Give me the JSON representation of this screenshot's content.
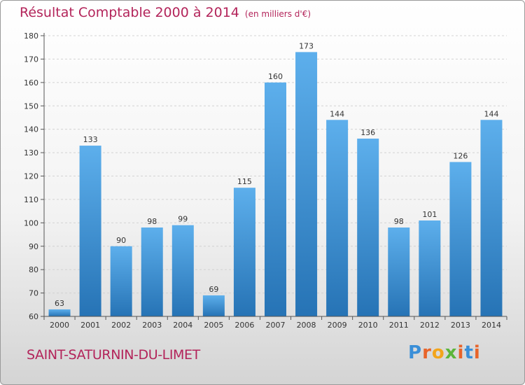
{
  "header": {
    "title": "Résultat Comptable 2000 à 2014",
    "unit": "(en milliers d'€)"
  },
  "footer": {
    "commune": "SAINT-SATURNIN-DU-LIMET",
    "logo": [
      "P",
      "r",
      "o",
      "x",
      "i",
      "t",
      "i"
    ]
  },
  "colors": {
    "title": "#b3245a",
    "bar_light": "#5dafec",
    "bar_dark": "#2673b5",
    "logo": [
      "#3a8fd8",
      "#e8642a",
      "#f2a51c",
      "#5bb53a",
      "#e8642a",
      "#3a8fd8",
      "#e8642a"
    ]
  },
  "chart_data": {
    "type": "bar",
    "title": "Résultat Comptable 2000 à 2014",
    "subtitle": "(en milliers d'€)",
    "xlabel": "",
    "ylabel": "",
    "categories": [
      "2000",
      "2001",
      "2002",
      "2003",
      "2004",
      "2005",
      "2006",
      "2007",
      "2008",
      "2009",
      "2010",
      "2011",
      "2012",
      "2013",
      "2014"
    ],
    "values": [
      63,
      133,
      90,
      98,
      99,
      69,
      115,
      160,
      173,
      144,
      136,
      98,
      101,
      126,
      144
    ],
    "ylim": [
      60,
      180
    ],
    "yticks": [
      60,
      70,
      80,
      90,
      100,
      110,
      120,
      130,
      140,
      150,
      160,
      170,
      180
    ],
    "grid": true
  }
}
